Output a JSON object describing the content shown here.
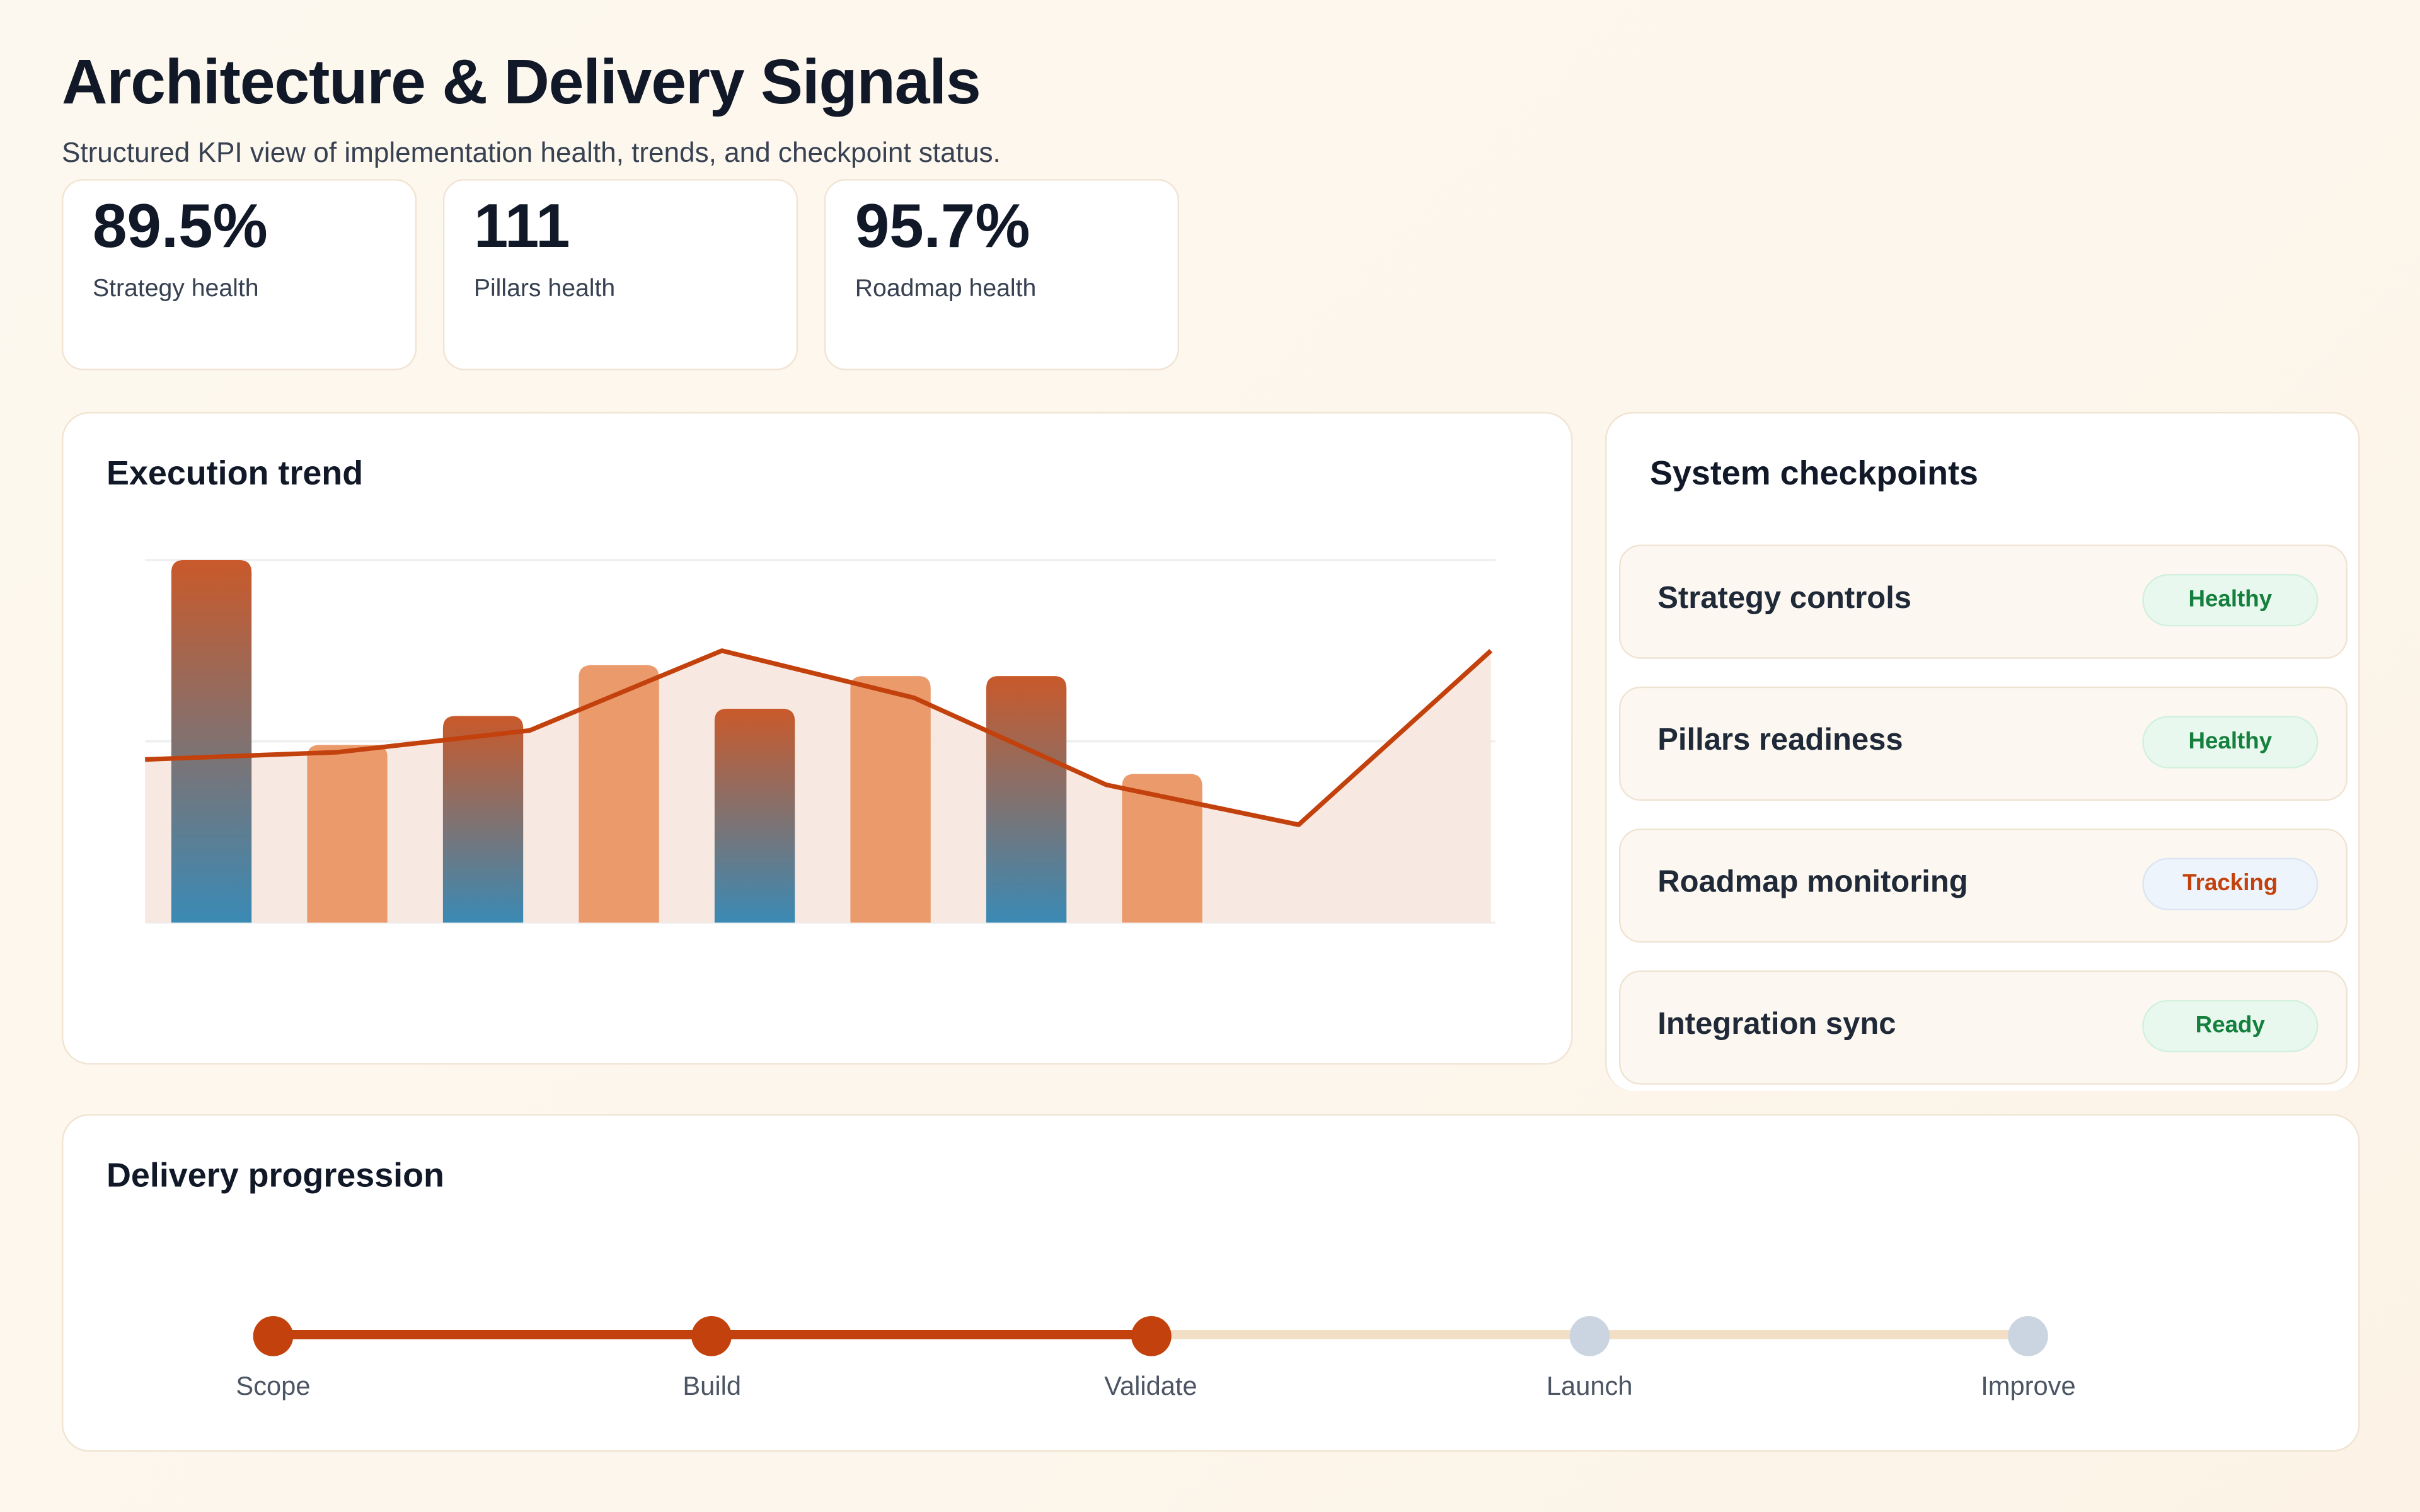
{
  "header": {
    "title": "Architecture & Delivery Signals",
    "subtitle": "Structured KPI view of implementation health, trends, and checkpoint status."
  },
  "kpis": [
    {
      "value": "89.5%",
      "label": "Strategy health"
    },
    {
      "value": "111",
      "label": "Pillars health"
    },
    {
      "value": "95.7%",
      "label": "Roadmap health"
    }
  ],
  "trend": {
    "title": "Execution trend"
  },
  "chart_data": {
    "type": "bar+line",
    "title": "Execution trend",
    "xlabel": "",
    "ylabel": "",
    "ylim": [
      0,
      100
    ],
    "grid": true,
    "bars": {
      "values": [
        100,
        49,
        57,
        71,
        59,
        68,
        68,
        41
      ],
      "colors": [
        "gradient",
        "#eb9a6b",
        "gradient",
        "#eb9a6b",
        "gradient",
        "#eb9a6b",
        "gradient",
        "#eb9a6b"
      ]
    },
    "line": {
      "values": [
        45,
        47,
        53,
        75,
        62,
        38,
        27,
        75
      ],
      "color": "#c2410c",
      "area_fill": "#f6e7de"
    },
    "bar_gradient": [
      "#c9592a",
      "#3a8ab5"
    ]
  },
  "checkpoints": {
    "title": "System checkpoints",
    "items": [
      {
        "name": "Strategy controls",
        "status": "Healthy",
        "tone": "green"
      },
      {
        "name": "Pillars readiness",
        "status": "Healthy",
        "tone": "green"
      },
      {
        "name": "Roadmap monitoring",
        "status": "Tracking",
        "tone": "blue"
      },
      {
        "name": "Integration sync",
        "status": "Ready",
        "tone": "green"
      }
    ]
  },
  "progression": {
    "title": "Delivery progression",
    "steps": [
      "Scope",
      "Build",
      "Validate",
      "Launch",
      "Improve"
    ],
    "completed": 3,
    "colors": {
      "done": "#c2410c",
      "todo": "#cbd5e1",
      "track": "#f2dfc6"
    }
  }
}
